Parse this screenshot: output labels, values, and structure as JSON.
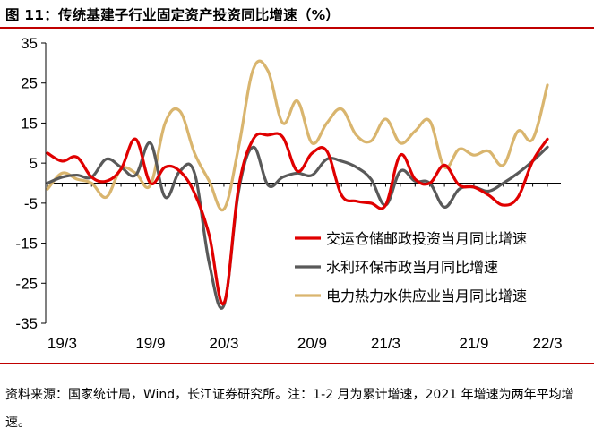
{
  "title": "图 11：传统基建子行业固定资产投资同比增速（%）",
  "source_note": "资料来源：国家统计局，Wind，长江证券研究所。注：1-2 月为累计增速，2021 年增速为两年平均增速。",
  "chart_data": {
    "type": "line",
    "title": "图 11：传统基建子行业固定资产投资同比增速（%）",
    "xlabel": "",
    "ylabel": "",
    "ylim": [
      -35,
      35
    ],
    "yticks": [
      35,
      25,
      15,
      5,
      -5,
      -15,
      -25,
      -35
    ],
    "xticks": [
      "19/3",
      "19/9",
      "20/3",
      "20/9",
      "21/3",
      "21/9",
      "22/3"
    ],
    "x": [
      "19/2",
      "19/3",
      "19/4",
      "19/5",
      "19/6",
      "19/7",
      "19/8",
      "19/9",
      "19/10",
      "19/11",
      "19/12",
      "20/2",
      "20/3",
      "20/4",
      "20/5",
      "20/6",
      "20/7",
      "20/8",
      "20/9",
      "20/10",
      "20/11",
      "20/12",
      "21/2",
      "21/3",
      "21/4",
      "21/5",
      "21/6",
      "21/7",
      "21/8",
      "21/9",
      "21/10",
      "21/11",
      "21/12",
      "22/2",
      "22/3"
    ],
    "grid": false,
    "legend": "lower-right",
    "series": [
      {
        "name": "交运仓储邮政投资当月同比增速",
        "color": "#e00000",
        "values": [
          7.5,
          5.5,
          6.5,
          1.5,
          0.5,
          3.5,
          11.0,
          0.0,
          4.0,
          3.0,
          -2.5,
          -13.0,
          -30.0,
          -1.0,
          11.0,
          12.0,
          11.5,
          3.0,
          7.5,
          8.0,
          -3.0,
          -4.5,
          -5.0,
          -5.5,
          7.0,
          1.0,
          0.0,
          4.5,
          -0.5,
          -1.0,
          -3.0,
          -5.5,
          -3.5,
          5.5,
          11.0
        ]
      },
      {
        "name": "水利环保市政当月同比增速",
        "color": "#595959",
        "values": [
          0.0,
          1.5,
          2.0,
          1.5,
          6.0,
          4.0,
          2.0,
          10.0,
          -3.5,
          3.0,
          2.5,
          -20.0,
          -30.5,
          -2.0,
          9.0,
          -0.5,
          1.5,
          2.5,
          2.0,
          6.0,
          5.5,
          4.0,
          1.0,
          -5.5,
          3.0,
          0.5,
          0.0,
          -6.0,
          -1.5,
          -1.0,
          -2.0,
          0.0,
          2.5,
          5.5,
          9.0
        ]
      },
      {
        "name": "电力热力水供应业当月同比增速",
        "color": "#d9b56e",
        "values": [
          -1.5,
          2.5,
          1.0,
          0.0,
          -3.5,
          3.5,
          2.5,
          -0.5,
          15.0,
          18.0,
          7.5,
          0.5,
          -6.5,
          9.0,
          28.5,
          28.0,
          15.0,
          20.5,
          10.0,
          15.0,
          18.5,
          12.0,
          10.5,
          16.0,
          10.0,
          13.0,
          15.5,
          4.0,
          8.5,
          7.0,
          8.0,
          4.5,
          13.0,
          11.0,
          24.5
        ]
      }
    ]
  }
}
